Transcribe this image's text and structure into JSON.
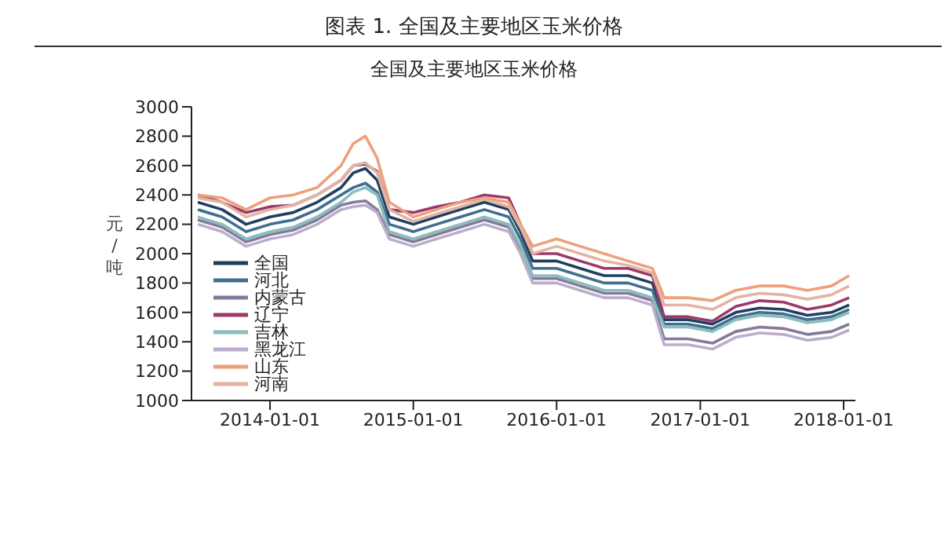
{
  "chart_data": {
    "type": "line",
    "title": "图表 1. 全国及主要地区玉米价格",
    "subtitle": "全国及主要地区玉米价格",
    "ylabel": "元/吨",
    "x": [
      "2013-07-01",
      "2013-09-01",
      "2013-11-01",
      "2014-01-01",
      "2014-03-01",
      "2014-05-01",
      "2014-07-01",
      "2014-08-01",
      "2014-09-01",
      "2014-10-01",
      "2014-11-01",
      "2015-01-01",
      "2015-03-01",
      "2015-05-01",
      "2015-07-01",
      "2015-09-01",
      "2015-10-01",
      "2015-11-01",
      "2016-01-01",
      "2016-03-01",
      "2016-05-01",
      "2016-07-01",
      "2016-09-01",
      "2016-10-01",
      "2016-12-01",
      "2017-02-01",
      "2017-04-01",
      "2017-06-01",
      "2017-08-01",
      "2017-10-01",
      "2017-12-01",
      "2018-01-15"
    ],
    "series": [
      {
        "name": "全国",
        "color": "#1f3f5f",
        "values": [
          2350,
          2300,
          2200,
          2250,
          2280,
          2350,
          2450,
          2550,
          2580,
          2500,
          2250,
          2200,
          2250,
          2300,
          2350,
          2300,
          2150,
          1950,
          1950,
          1900,
          1850,
          1850,
          1800,
          1550,
          1550,
          1520,
          1600,
          1630,
          1620,
          1580,
          1600,
          1650
        ]
      },
      {
        "name": "河北",
        "color": "#3f6f8f",
        "values": [
          2300,
          2250,
          2150,
          2200,
          2230,
          2300,
          2400,
          2450,
          2480,
          2420,
          2200,
          2150,
          2200,
          2250,
          2300,
          2250,
          2100,
          1900,
          1900,
          1850,
          1800,
          1800,
          1750,
          1520,
          1520,
          1490,
          1570,
          1600,
          1590,
          1550,
          1570,
          1620
        ]
      },
      {
        "name": "内蒙古",
        "color": "#857a9a",
        "values": [
          2230,
          2180,
          2080,
          2130,
          2160,
          2230,
          2330,
          2350,
          2360,
          2300,
          2130,
          2080,
          2130,
          2180,
          2230,
          2180,
          2030,
          1830,
          1830,
          1780,
          1730,
          1730,
          1680,
          1420,
          1420,
          1390,
          1470,
          1500,
          1490,
          1450,
          1470,
          1520
        ]
      },
      {
        "name": "辽宁",
        "color": "#9a3a6a",
        "values": [
          2400,
          2350,
          2280,
          2320,
          2330,
          2400,
          2500,
          2600,
          2610,
          2560,
          2300,
          2280,
          2320,
          2350,
          2400,
          2380,
          2200,
          2000,
          2000,
          1950,
          1900,
          1900,
          1850,
          1570,
          1570,
          1540,
          1640,
          1680,
          1670,
          1620,
          1650,
          1700
        ]
      },
      {
        "name": "吉林",
        "color": "#8cbcbc",
        "values": [
          2250,
          2200,
          2100,
          2150,
          2180,
          2250,
          2350,
          2420,
          2450,
          2400,
          2150,
          2100,
          2150,
          2200,
          2250,
          2200,
          2050,
          1850,
          1850,
          1800,
          1750,
          1750,
          1700,
          1500,
          1500,
          1470,
          1550,
          1580,
          1570,
          1530,
          1550,
          1600
        ]
      },
      {
        "name": "黑龙江",
        "color": "#bcaecb",
        "values": [
          2200,
          2150,
          2050,
          2100,
          2130,
          2200,
          2300,
          2320,
          2330,
          2280,
          2100,
          2050,
          2100,
          2150,
          2200,
          2150,
          2000,
          1800,
          1800,
          1750,
          1700,
          1700,
          1650,
          1380,
          1380,
          1350,
          1430,
          1460,
          1450,
          1410,
          1430,
          1480
        ]
      },
      {
        "name": "山东",
        "color": "#eda07c",
        "values": [
          2400,
          2380,
          2300,
          2380,
          2400,
          2450,
          2600,
          2750,
          2800,
          2650,
          2350,
          2250,
          2300,
          2350,
          2380,
          2350,
          2200,
          2050,
          2100,
          2050,
          2000,
          1950,
          1900,
          1700,
          1700,
          1680,
          1750,
          1780,
          1780,
          1750,
          1780,
          1850
        ]
      },
      {
        "name": "河南",
        "color": "#e3b4a4",
        "values": [
          2380,
          2350,
          2250,
          2300,
          2330,
          2400,
          2500,
          2600,
          2620,
          2550,
          2300,
          2220,
          2270,
          2320,
          2370,
          2320,
          2180,
          2000,
          2050,
          2000,
          1950,
          1920,
          1870,
          1650,
          1650,
          1620,
          1700,
          1730,
          1720,
          1690,
          1720,
          1780
        ]
      }
    ],
    "xlim": [
      "2013-06-15",
      "2018-01-31"
    ],
    "xticks": [
      "2014-01-01",
      "2015-01-01",
      "2016-01-01",
      "2017-01-01",
      "2018-01-01"
    ],
    "ylim": [
      1000,
      3000
    ],
    "yticks": [
      1000,
      1200,
      1400,
      1600,
      1800,
      2000,
      2200,
      2400,
      2600,
      2800,
      3000
    ],
    "grid": false,
    "legend": "bottom left",
    "marker": "none",
    "line_style": "solid"
  }
}
